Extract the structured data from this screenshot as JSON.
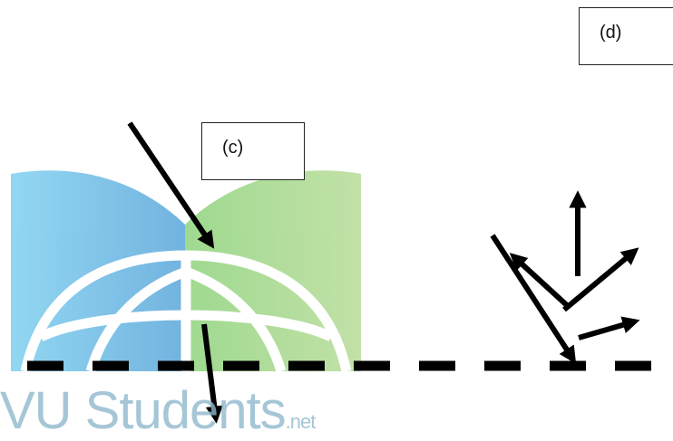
{
  "labels": {
    "c": "(c)",
    "d": "(d)"
  },
  "watermark": {
    "main": "VU Students",
    "suffix": ".net"
  },
  "colors": {
    "book_left": "#6ec6ea",
    "book_right": "#8fcf7b",
    "globe": "#ffffff",
    "watermark_text": "#8fb9cc",
    "lines": "#000000"
  }
}
